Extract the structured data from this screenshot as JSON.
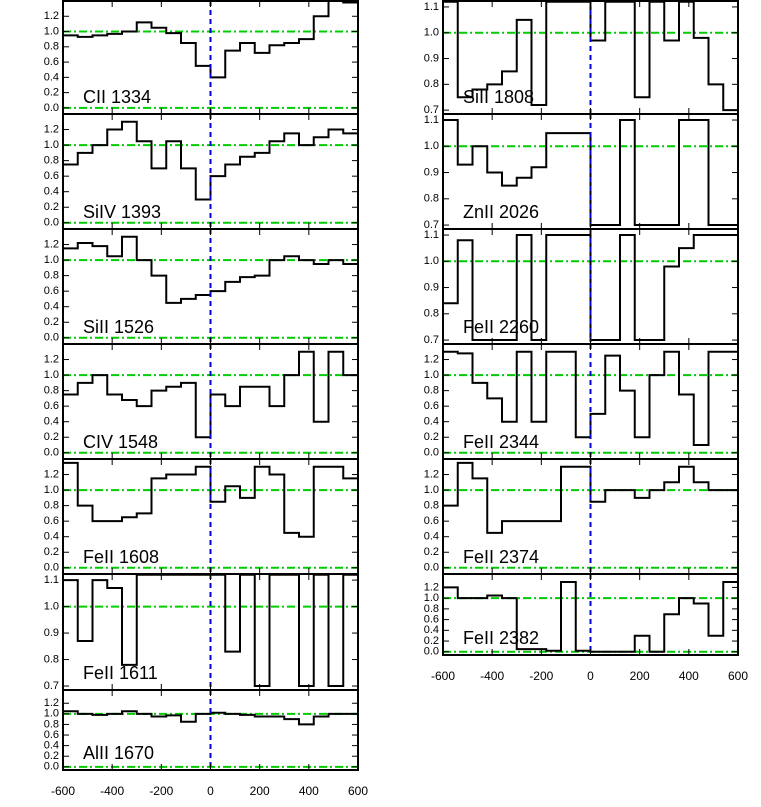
{
  "chart_data": [
    {
      "type": "line",
      "title": "CII 1334",
      "x": [
        -570,
        -510,
        -450,
        -390,
        -330,
        -270,
        -210,
        -150,
        -90,
        -30,
        30,
        90,
        150,
        210,
        270,
        330,
        390,
        450,
        510,
        570
      ],
      "values": [
        0.95,
        0.93,
        0.95,
        0.97,
        1.0,
        1.12,
        1.05,
        0.98,
        0.85,
        0.55,
        0.4,
        0.75,
        0.85,
        0.72,
        0.82,
        0.85,
        0.9,
        1.2,
        1.4,
        1.38
      ],
      "xlim": [
        -600,
        600
      ],
      "ylim": [
        -0.08,
        1.4
      ],
      "xticks": [
        -600,
        -400,
        -200,
        0,
        200,
        400,
        600
      ],
      "yticks": [
        {
          "value": 0,
          "label": "0.0"
        },
        0.2,
        0.4,
        0.6,
        0.8,
        {
          "value": 1,
          "label": "1.0"
        },
        1.2
      ],
      "hlines": [
        0,
        1
      ],
      "vline": 0,
      "color": "#000000",
      "hline_color": "#00cc00",
      "vline_color": "#0000dd"
    },
    {
      "type": "line",
      "title": "SiIV 1393",
      "x": [
        -570,
        -510,
        -450,
        -390,
        -330,
        -270,
        -210,
        -150,
        -90,
        -30,
        30,
        90,
        150,
        210,
        270,
        330,
        390,
        450,
        510,
        570
      ],
      "values": [
        0.75,
        0.9,
        1.0,
        1.2,
        1.3,
        1.05,
        0.7,
        1.05,
        0.7,
        0.3,
        0.6,
        0.75,
        0.85,
        0.9,
        1.05,
        1.15,
        1.0,
        1.1,
        1.2,
        1.15
      ],
      "xlim": [
        -600,
        600
      ],
      "ylim": [
        -0.08,
        1.4
      ],
      "xticks": [
        -600,
        -400,
        -200,
        0,
        200,
        400,
        600
      ],
      "yticks": [
        {
          "value": 0,
          "label": "0.0"
        },
        0.2,
        0.4,
        0.6,
        0.8,
        {
          "value": 1,
          "label": "1.0"
        },
        1.2
      ],
      "hlines": [
        0,
        1
      ],
      "vline": 0,
      "color": "#000000",
      "hline_color": "#00cc00",
      "vline_color": "#0000dd"
    },
    {
      "type": "line",
      "title": "SiII 1526",
      "x": [
        -570,
        -510,
        -450,
        -390,
        -330,
        -270,
        -210,
        -150,
        -90,
        -30,
        30,
        90,
        150,
        210,
        270,
        330,
        390,
        450,
        510,
        570
      ],
      "values": [
        1.15,
        1.22,
        1.18,
        1.05,
        1.3,
        1.0,
        0.8,
        0.45,
        0.5,
        0.55,
        0.6,
        0.72,
        0.78,
        0.8,
        1.0,
        1.05,
        1.0,
        0.95,
        1.0,
        0.95
      ],
      "xlim": [
        -600,
        600
      ],
      "ylim": [
        -0.08,
        1.4
      ],
      "xticks": [
        -600,
        -400,
        -200,
        0,
        200,
        400,
        600
      ],
      "yticks": [
        {
          "value": 0,
          "label": "0.0"
        },
        0.2,
        0.4,
        0.6,
        0.8,
        {
          "value": 1,
          "label": "1.0"
        },
        1.2
      ],
      "hlines": [
        0,
        1
      ],
      "vline": 0,
      "color": "#000000",
      "hline_color": "#00cc00",
      "vline_color": "#0000dd"
    },
    {
      "type": "line",
      "title": "CIV 1548",
      "x": [
        -570,
        -510,
        -450,
        -390,
        -330,
        -270,
        -210,
        -150,
        -90,
        -30,
        30,
        90,
        150,
        210,
        270,
        330,
        390,
        450,
        510,
        570
      ],
      "values": [
        0.75,
        0.9,
        1.0,
        0.75,
        0.68,
        0.6,
        0.8,
        0.85,
        0.9,
        0.2,
        0.75,
        0.6,
        0.85,
        0.85,
        0.6,
        1.0,
        1.3,
        0.4,
        1.3,
        1.0
      ],
      "xlim": [
        -600,
        600
      ],
      "ylim": [
        -0.08,
        1.4
      ],
      "xticks": [
        -600,
        -400,
        -200,
        0,
        200,
        400,
        600
      ],
      "yticks": [
        {
          "value": 0,
          "label": "0.0"
        },
        0.2,
        0.4,
        0.6,
        0.8,
        {
          "value": 1,
          "label": "1.0"
        },
        1.2
      ],
      "hlines": [
        0,
        1
      ],
      "vline": 0,
      "color": "#000000",
      "hline_color": "#00cc00",
      "vline_color": "#0000dd"
    },
    {
      "type": "line",
      "title": "FeII 1608",
      "x": [
        -570,
        -510,
        -450,
        -390,
        -330,
        -270,
        -210,
        -150,
        -90,
        -30,
        30,
        90,
        150,
        210,
        270,
        330,
        390,
        450,
        510,
        570
      ],
      "values": [
        1.35,
        0.8,
        0.6,
        0.6,
        0.65,
        0.7,
        1.15,
        1.2,
        1.2,
        1.3,
        0.85,
        1.05,
        0.9,
        1.3,
        1.2,
        0.45,
        0.4,
        1.3,
        1.3,
        1.15
      ],
      "xlim": [
        -600,
        600
      ],
      "ylim": [
        -0.08,
        1.4
      ],
      "xticks": [
        -600,
        -400,
        -200,
        0,
        200,
        400,
        600
      ],
      "yticks": [
        {
          "value": 0,
          "label": "0.0"
        },
        0.2,
        0.4,
        0.6,
        0.8,
        {
          "value": 1,
          "label": "1.0"
        },
        1.2
      ],
      "hlines": [
        0,
        1
      ],
      "vline": 0,
      "color": "#000000",
      "hline_color": "#00cc00",
      "vline_color": "#0000dd"
    },
    {
      "type": "line",
      "title": "FeII 1611",
      "x": [
        -570,
        -510,
        -450,
        -390,
        -330,
        -270,
        -210,
        -150,
        -90,
        -30,
        30,
        90,
        150,
        210,
        270,
        330,
        390,
        450,
        510,
        570
      ],
      "values": [
        1.1,
        0.87,
        1.1,
        1.07,
        0.78,
        1.12,
        1.12,
        1.12,
        1.12,
        1.12,
        1.12,
        0.83,
        1.12,
        0.7,
        1.12,
        1.12,
        0.7,
        1.12,
        0.7,
        1.12
      ],
      "xlim": [
        -600,
        600
      ],
      "ylim": [
        0.685,
        1.123
      ],
      "xticks": [
        -600,
        -400,
        -200,
        0,
        200,
        400,
        600
      ],
      "yticks": [
        0.7,
        0.8,
        0.9,
        {
          "value": 1,
          "label": "1.0"
        },
        1.1
      ],
      "hlines": [
        1
      ],
      "vline": 0,
      "color": "#000000",
      "hline_color": "#00cc00",
      "vline_color": "#0000dd"
    },
    {
      "type": "line",
      "title": "AlII 1670",
      "x": [
        -570,
        -510,
        -450,
        -390,
        -330,
        -270,
        -210,
        -150,
        -90,
        -30,
        30,
        90,
        150,
        210,
        270,
        330,
        390,
        450,
        510,
        570
      ],
      "values": [
        1.05,
        1.0,
        0.98,
        1.0,
        1.05,
        1.0,
        0.95,
        0.97,
        0.85,
        1.0,
        1.02,
        1.0,
        0.98,
        0.95,
        0.95,
        0.9,
        0.8,
        0.95,
        1.0,
        1.0
      ],
      "xlim": [
        -600,
        600
      ],
      "ylim": [
        -0.06,
        1.45
      ],
      "xticks": [
        -600,
        -400,
        -200,
        0,
        200,
        400,
        600
      ],
      "yticks": [
        {
          "value": 0,
          "label": "0.0"
        },
        0.2,
        0.4,
        0.6,
        0.8,
        {
          "value": 1,
          "label": "1.0"
        },
        1.2
      ],
      "hlines": [
        0,
        1
      ],
      "vline": 0,
      "color": "#000000",
      "hline_color": "#00cc00",
      "vline_color": "#0000dd"
    },
    {
      "type": "line",
      "title": "SiII 1808",
      "x": [
        -570,
        -510,
        -450,
        -390,
        -330,
        -270,
        -210,
        -150,
        -90,
        -30,
        30,
        90,
        150,
        210,
        270,
        330,
        390,
        450,
        510,
        570
      ],
      "values": [
        1.12,
        0.75,
        0.78,
        0.8,
        0.85,
        1.05,
        0.72,
        1.12,
        1.12,
        1.12,
        0.97,
        1.12,
        1.12,
        0.75,
        1.12,
        0.97,
        1.12,
        0.98,
        0.8,
        0.7
      ],
      "xlim": [
        -600,
        600
      ],
      "ylim": [
        0.685,
        1.123
      ],
      "xticks": [
        -600,
        -400,
        -200,
        0,
        200,
        400,
        600
      ],
      "yticks": [
        0.7,
        0.8,
        0.9,
        {
          "value": 1,
          "label": "1.0"
        },
        1.1
      ],
      "hlines": [
        1
      ],
      "vline": 0,
      "color": "#000000",
      "hline_color": "#00cc00",
      "vline_color": "#0000dd"
    },
    {
      "type": "line",
      "title": "ZnII 2026",
      "x": [
        -570,
        -510,
        -450,
        -390,
        -330,
        -270,
        -210,
        -150,
        -90,
        -30,
        30,
        90,
        150,
        210,
        270,
        330,
        390,
        450,
        510,
        570
      ],
      "values": [
        1.1,
        0.93,
        1.0,
        0.9,
        0.85,
        0.88,
        0.92,
        1.05,
        1.05,
        1.05,
        0.7,
        0.7,
        1.1,
        0.7,
        0.7,
        0.7,
        1.1,
        1.1,
        0.7,
        0.7
      ],
      "xlim": [
        -600,
        600
      ],
      "ylim": [
        0.685,
        1.123
      ],
      "xticks": [
        -600,
        -400,
        -200,
        0,
        200,
        400,
        600
      ],
      "yticks": [
        0.7,
        0.8,
        0.9,
        {
          "value": 1,
          "label": "1.0"
        },
        1.1
      ],
      "hlines": [
        1
      ],
      "vline": 0,
      "color": "#000000",
      "hline_color": "#00cc00",
      "vline_color": "#0000dd"
    },
    {
      "type": "line",
      "title": "FeII 2260",
      "x": [
        -570,
        -510,
        -450,
        -390,
        -330,
        -270,
        -210,
        -150,
        -90,
        -30,
        30,
        90,
        150,
        210,
        270,
        330,
        390,
        450,
        510,
        570
      ],
      "values": [
        0.84,
        1.08,
        0.7,
        0.7,
        0.7,
        1.1,
        0.7,
        1.1,
        1.1,
        1.1,
        0.7,
        0.7,
        1.1,
        0.7,
        0.7,
        0.98,
        1.05,
        1.1,
        1.1,
        1.1
      ],
      "xlim": [
        -600,
        600
      ],
      "ylim": [
        0.685,
        1.123
      ],
      "xticks": [
        -600,
        -400,
        -200,
        0,
        200,
        400,
        600
      ],
      "yticks": [
        0.7,
        0.8,
        0.9,
        {
          "value": 1,
          "label": "1.0"
        },
        1.1
      ],
      "hlines": [
        1
      ],
      "vline": 0,
      "color": "#000000",
      "hline_color": "#00cc00",
      "vline_color": "#0000dd"
    },
    {
      "type": "line",
      "title": "FeII 2344",
      "x": [
        -570,
        -510,
        -450,
        -390,
        -330,
        -270,
        -210,
        -150,
        -90,
        -30,
        30,
        90,
        150,
        210,
        270,
        330,
        390,
        450,
        510,
        570
      ],
      "values": [
        1.3,
        1.28,
        0.9,
        0.7,
        0.4,
        1.3,
        0.4,
        1.3,
        1.3,
        0.2,
        0.5,
        1.25,
        0.8,
        0.2,
        1.0,
        1.3,
        0.75,
        0.1,
        1.3,
        1.3
      ],
      "xlim": [
        -600,
        600
      ],
      "ylim": [
        -0.08,
        1.4
      ],
      "xticks": [
        -600,
        -400,
        -200,
        0,
        200,
        400,
        600
      ],
      "yticks": [
        {
          "value": 0,
          "label": "0.0"
        },
        0.2,
        0.4,
        0.6,
        0.8,
        {
          "value": 1,
          "label": "1.0"
        },
        1.2
      ],
      "hlines": [
        0,
        1
      ],
      "vline": 0,
      "color": "#000000",
      "hline_color": "#00cc00",
      "vline_color": "#0000dd"
    },
    {
      "type": "line",
      "title": "FeII 2374",
      "x": [
        -570,
        -510,
        -450,
        -390,
        -330,
        -270,
        -210,
        -150,
        -90,
        -30,
        30,
        90,
        150,
        210,
        270,
        330,
        390,
        450,
        510,
        570
      ],
      "values": [
        0.8,
        1.35,
        1.15,
        0.45,
        0.6,
        0.6,
        0.6,
        0.6,
        1.3,
        1.3,
        0.85,
        1.0,
        1.0,
        0.9,
        1.0,
        1.1,
        1.3,
        1.1,
        1.0,
        1.0
      ],
      "xlim": [
        -600,
        600
      ],
      "ylim": [
        -0.08,
        1.4
      ],
      "xticks": [
        -600,
        -400,
        -200,
        0,
        200,
        400,
        600
      ],
      "yticks": [
        {
          "value": 0,
          "label": "0.0"
        },
        0.2,
        0.4,
        0.6,
        0.8,
        {
          "value": 1,
          "label": "1.0"
        },
        1.2
      ],
      "hlines": [
        0,
        1
      ],
      "vline": 0,
      "color": "#000000",
      "hline_color": "#00cc00",
      "vline_color": "#0000dd"
    },
    {
      "type": "line",
      "title": "FeII 2382",
      "x": [
        -570,
        -510,
        -450,
        -390,
        -330,
        -270,
        -210,
        -150,
        -90,
        -30,
        30,
        90,
        150,
        210,
        270,
        330,
        390,
        450,
        510,
        570
      ],
      "values": [
        1.2,
        1.0,
        1.0,
        1.05,
        1.0,
        0.05,
        0.05,
        0.02,
        1.3,
        0.02,
        0.0,
        0.0,
        0.0,
        0.3,
        0.0,
        0.7,
        1.0,
        0.9,
        0.3,
        1.3
      ],
      "xlim": [
        -600,
        600
      ],
      "ylim": [
        -0.06,
        1.45
      ],
      "xticks": [
        -600,
        -400,
        -200,
        0,
        200,
        400,
        600
      ],
      "yticks": [
        {
          "value": 0,
          "label": "0.0"
        },
        0.2,
        0.4,
        0.6,
        0.8,
        {
          "value": 1,
          "label": "1.0"
        },
        1.2
      ],
      "hlines": [
        0,
        1
      ],
      "vline": 0,
      "color": "#000000",
      "hline_color": "#00cc00",
      "vline_color": "#0000dd"
    }
  ]
}
